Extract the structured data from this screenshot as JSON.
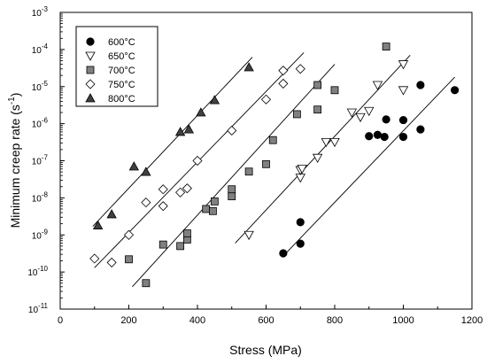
{
  "chart_data": {
    "type": "scatter",
    "xlabel": "Stress (MPa)",
    "ylabel": "Minimum creep rate (s",
    "ylabel_sup": "-1",
    "ylabel_end": ")",
    "xlim": [
      0,
      1200
    ],
    "ylim": [
      1e-11,
      0.001
    ],
    "yscale": "log",
    "xticks": [
      "0",
      "200",
      "400",
      "600",
      "800",
      "1000",
      "1200"
    ],
    "xtick_values": [
      0,
      200,
      400,
      600,
      800,
      1000,
      1200
    ],
    "yticks": [
      {
        "base": "10",
        "exp": "-11",
        "value": 1e-11
      },
      {
        "base": "10",
        "exp": "-10",
        "value": 1e-10
      },
      {
        "base": "10",
        "exp": "-9",
        "value": 1e-09
      },
      {
        "base": "10",
        "exp": "-8",
        "value": 1e-08
      },
      {
        "base": "10",
        "exp": "-7",
        "value": 1e-07
      },
      {
        "base": "10",
        "exp": "-6",
        "value": 1e-06
      },
      {
        "base": "10",
        "exp": "-5",
        "value": 1e-05
      },
      {
        "base": "10",
        "exp": "-4",
        "value": 0.0001
      },
      {
        "base": "10",
        "exp": "-3",
        "value": 0.001
      }
    ],
    "legend_position": "top-left",
    "series": [
      {
        "name": "600°C",
        "marker": "circle",
        "fill": "#000000",
        "points": [
          [
            650,
            3.2e-10
          ],
          [
            700,
            5.8e-10
          ],
          [
            700,
            2.2e-09
          ],
          [
            900,
            4.6e-07
          ],
          [
            925,
            5e-07
          ],
          [
            945,
            4.4e-07
          ],
          [
            950,
            1.3e-06
          ],
          [
            1000,
            4.4e-07
          ],
          [
            1000,
            1.25e-06
          ],
          [
            1050,
            7e-07
          ],
          [
            1050,
            1.1e-05
          ],
          [
            1150,
            8e-06
          ]
        ],
        "fit": [
          [
            650,
            2.7e-10
          ],
          [
            1150,
            1.8e-05
          ]
        ]
      },
      {
        "name": "650°C",
        "marker": "triangle-down",
        "fill": "#ffffff",
        "points": [
          [
            550,
            1e-09
          ],
          [
            700,
            3.5e-08
          ],
          [
            700,
            5.6e-08
          ],
          [
            705,
            6.1e-08
          ],
          [
            750,
            1.2e-07
          ],
          [
            775,
            3.2e-07
          ],
          [
            800,
            3.2e-07
          ],
          [
            850,
            2e-06
          ],
          [
            875,
            1.5e-06
          ],
          [
            900,
            2.2e-06
          ],
          [
            925,
            1.1e-05
          ],
          [
            1000,
            8e-06
          ],
          [
            1000,
            4e-05
          ]
        ],
        "fit": [
          [
            510,
            6e-10
          ],
          [
            1020,
            7e-05
          ]
        ]
      },
      {
        "name": "700°C",
        "marker": "square",
        "fill": "#808080",
        "points": [
          [
            200,
            2.2e-10
          ],
          [
            250,
            5e-11
          ],
          [
            300,
            5.5e-10
          ],
          [
            350,
            5e-10
          ],
          [
            370,
            7.5e-10
          ],
          [
            370,
            1.1e-09
          ],
          [
            425,
            5e-09
          ],
          [
            445,
            4.4e-09
          ],
          [
            450,
            8e-09
          ],
          [
            500,
            1.1e-08
          ],
          [
            500,
            1.7e-08
          ],
          [
            550,
            5.1e-08
          ],
          [
            600,
            8.1e-08
          ],
          [
            620,
            3.6e-07
          ],
          [
            690,
            1.8e-06
          ],
          [
            750,
            2.4e-06
          ],
          [
            750,
            1.1e-05
          ],
          [
            800,
            8e-06
          ],
          [
            950,
            0.00012
          ]
        ],
        "fit": [
          [
            210,
            4e-11
          ],
          [
            800,
            4e-05
          ]
        ]
      },
      {
        "name": "750°C",
        "marker": "diamond",
        "fill": "#ffffff",
        "points": [
          [
            100,
            2.3e-10
          ],
          [
            150,
            1.8e-10
          ],
          [
            200,
            1e-09
          ],
          [
            250,
            7.5e-09
          ],
          [
            300,
            6e-09
          ],
          [
            300,
            1.7e-08
          ],
          [
            350,
            1.4e-08
          ],
          [
            370,
            1.8e-08
          ],
          [
            400,
            1e-07
          ],
          [
            500,
            6.5e-07
          ],
          [
            600,
            4.5e-06
          ],
          [
            650,
            1.2e-05
          ],
          [
            650,
            2.7e-05
          ],
          [
            700,
            3e-05
          ]
        ],
        "fit": [
          [
            100,
            1.3e-10
          ],
          [
            710,
            8.2e-05
          ]
        ]
      },
      {
        "name": "800°C",
        "marker": "triangle-up",
        "fill": "#404040",
        "points": [
          [
            110,
            1.8e-09
          ],
          [
            150,
            3.6e-09
          ],
          [
            215,
            7e-08
          ],
          [
            250,
            5e-08
          ],
          [
            350,
            6e-07
          ],
          [
            375,
            7e-07
          ],
          [
            410,
            2e-06
          ],
          [
            450,
            4.3e-06
          ],
          [
            550,
            3.3e-05
          ]
        ],
        "fit": [
          [
            95,
            1.7e-09
          ],
          [
            560,
            6.2e-05
          ]
        ]
      }
    ]
  }
}
